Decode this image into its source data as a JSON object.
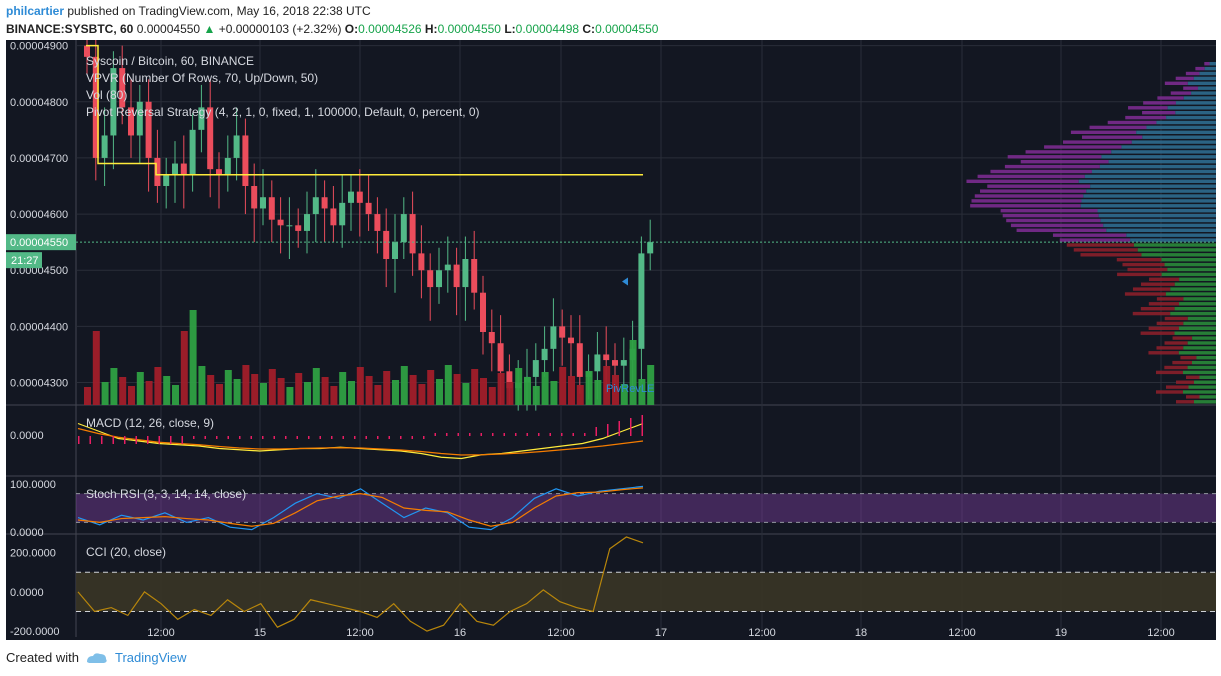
{
  "header": {
    "author": "philcartier",
    "published_text": "published on TradingView.com, May 16, 2018 22:38 UTC",
    "symbol": "BINANCE:SYSBTC, 60",
    "last": "0.00004550",
    "change_arrow": "▲",
    "change": "+0.00000103 (+2.32%)",
    "o_label": "O:",
    "o": "0.00004526",
    "h_label": "H:",
    "h": "0.00004550",
    "l_label": "L:",
    "l": "0.00004498",
    "c_label": "C:",
    "c": "0.00004550"
  },
  "legend": {
    "title": "Syscoin / Bitcoin, 60, BINANCE",
    "vpvr": "VPVR (Number Of Rows, 70, Up/Down, 50)",
    "vol": "Vol (80)",
    "strategy": "Pivot Reversal Strategy (4, 2, 1, 0, fixed, 1, 100000, Default, 0, percent, 0)",
    "macd": "MACD (12, 26, close, 9)",
    "stoch": "Stoch RSI (3, 3, 14, 14, close)",
    "cci": "CCI (20, close)"
  },
  "price_badge": "0.00004550",
  "countdown": "21:27",
  "marker_label": "PivRevLE",
  "footer": {
    "created": "Created with",
    "brand": "TradingView"
  },
  "colors": {
    "up": "#53b987",
    "down": "#eb4d5c",
    "background": "#131722",
    "accent": "#2e8bd6"
  },
  "chart_data": [
    {
      "type": "candlestick",
      "title": "Syscoin / Bitcoin, 60, BINANCE",
      "x_tick_labels": [
        "12:00",
        "15",
        "12:00",
        "16",
        "12:00",
        "17",
        "12:00",
        "18",
        "12:00",
        "19",
        "12:00"
      ],
      "y_tick_labels": [
        "0.00004900",
        "0.00004800",
        "0.00004700",
        "0.00004600",
        "0.00004500",
        "0.00004400",
        "0.00004300"
      ],
      "ylim": [
        4.26e-05,
        4.91e-05
      ],
      "last_price": 4.55e-05,
      "close": [
        4.88e-05,
        4.7e-05,
        4.74e-05,
        4.86e-05,
        4.79e-05,
        4.74e-05,
        4.8e-05,
        4.7e-05,
        4.65e-05,
        4.67e-05,
        4.69e-05,
        4.67e-05,
        4.75e-05,
        4.79e-05,
        4.68e-05,
        4.67e-05,
        4.7e-05,
        4.74e-05,
        4.65e-05,
        4.61e-05,
        4.63e-05,
        4.59e-05,
        4.58e-05,
        4.58e-05,
        4.57e-05,
        4.6e-05,
        4.63e-05,
        4.61e-05,
        4.58e-05,
        4.62e-05,
        4.64e-05,
        4.62e-05,
        4.6e-05,
        4.57e-05,
        4.52e-05,
        4.55e-05,
        4.6e-05,
        4.53e-05,
        4.5e-05,
        4.47e-05,
        4.5e-05,
        4.51e-05,
        4.47e-05,
        4.52e-05,
        4.46e-05,
        4.39e-05,
        4.37e-05,
        4.32e-05,
        4.29e-05,
        4.3e-05,
        4.31e-05,
        4.34e-05,
        4.36e-05,
        4.4e-05,
        4.38e-05,
        4.37e-05,
        4.31e-05,
        4.32e-05,
        4.35e-05,
        4.34e-05,
        4.33e-05,
        4.34e-05,
        4.36e-05,
        4.53e-05,
        4.55e-05
      ],
      "volume_max": 0.54
    },
    {
      "type": "line",
      "title": "MACD (12, 26, close, 9)",
      "y_tick_labels": [
        "0.0000"
      ],
      "series": [
        {
          "name": "MACD",
          "values": [
            0.5,
            0.2,
            -0.1,
            -0.2,
            -0.3,
            -0.35,
            -0.4,
            -0.5,
            -0.55,
            -0.6,
            -0.55,
            -0.5,
            -0.5,
            -0.45,
            -0.5,
            -0.55,
            -0.6,
            -0.7,
            -0.85,
            -0.9,
            -0.75,
            -0.7,
            -0.6,
            -0.5,
            -0.4,
            -0.3,
            -0.1,
            0.2,
            0.5
          ]
        },
        {
          "name": "Signal",
          "values": [
            0.3,
            0.1,
            -0.05,
            -0.15,
            -0.25,
            -0.3,
            -0.35,
            -0.42,
            -0.48,
            -0.52,
            -0.52,
            -0.5,
            -0.48,
            -0.47,
            -0.48,
            -0.52,
            -0.56,
            -0.62,
            -0.7,
            -0.76,
            -0.75,
            -0.72,
            -0.68,
            -0.62,
            -0.55,
            -0.48,
            -0.4,
            -0.3,
            -0.2
          ]
        }
      ]
    },
    {
      "type": "line",
      "title": "Stoch RSI (3, 3, 14, 14, close)",
      "y_tick_labels": [
        "100.0000",
        "0.0000"
      ],
      "ylim": [
        0,
        100
      ],
      "series": [
        {
          "name": "K",
          "values": [
            30,
            15,
            35,
            25,
            40,
            20,
            30,
            10,
            5,
            30,
            60,
            80,
            70,
            90,
            60,
            30,
            50,
            40,
            10,
            5,
            30,
            70,
            90,
            75,
            85,
            90,
            95
          ]
        },
        {
          "name": "D",
          "values": [
            25,
            20,
            28,
            30,
            32,
            28,
            25,
            18,
            12,
            18,
            40,
            65,
            75,
            80,
            72,
            50,
            45,
            42,
            25,
            12,
            20,
            50,
            75,
            82,
            83,
            88,
            92
          ]
        }
      ]
    },
    {
      "type": "line",
      "title": "CCI (20, close)",
      "y_tick_labels": [
        "200.0000",
        "0.0000",
        "-200.0000"
      ],
      "ylim": [
        -230,
        290
      ],
      "series": [
        {
          "name": "CCI",
          "values": [
            0,
            -100,
            -80,
            -120,
            0,
            -60,
            -140,
            -90,
            -120,
            -40,
            -100,
            -60,
            -180,
            -140,
            -40,
            -60,
            -80,
            -100,
            -130,
            -60,
            -150,
            -200,
            -170,
            -60,
            -150,
            -170,
            -100,
            -60,
            10,
            -50,
            -80,
            -100,
            220,
            280,
            250
          ]
        }
      ]
    }
  ]
}
